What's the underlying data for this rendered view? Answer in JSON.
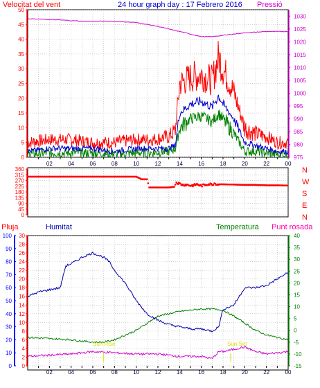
{
  "header": {
    "wind_label": "Velocitat del vent",
    "title": "24 hour graph day : 17 Febrero 2016",
    "pressure_label": "Pressió"
  },
  "mid_labels": {
    "pluja": "Pluja",
    "humitat": "Humitat",
    "temperatura": "Temperatura",
    "punt_rosada": "Punt rosada",
    "sun_rise": "Sun Rise",
    "sun_set": "Sun Set"
  },
  "compass": [
    "N",
    "W",
    "S",
    "E",
    "N"
  ],
  "colors": {
    "wind": "#ff0000",
    "avg": "#0000cc",
    "green": "#008000",
    "pressure": "#cc00cc",
    "humidity": "#0000aa",
    "rain_axis": "#0000ff",
    "grid": "#999999",
    "sun": "#dddd00"
  },
  "chart_data": [
    {
      "type": "line",
      "title": "24 hour graph day : 17 Febrero 2016",
      "x_ticks": [
        "02",
        "04",
        "06",
        "08",
        "10",
        "12",
        "14",
        "16",
        "18",
        "20",
        "22",
        "00"
      ],
      "y_left_ticks": [
        0,
        5,
        10,
        15,
        20,
        25,
        30,
        35,
        40,
        45,
        50
      ],
      "ylim_left": [
        0,
        50
      ],
      "y_right_ticks": [
        975,
        980,
        985,
        990,
        995,
        1000,
        1005,
        1010,
        1015,
        1020,
        1025,
        1030
      ],
      "ylim_right": [
        975,
        1032.5
      ],
      "series": [
        {
          "name": "Velocitat del vent",
          "axis": "left",
          "color": "#ff0000",
          "hours": [
            0,
            2,
            4,
            6,
            8,
            10,
            11.5,
            13,
            13.6,
            14,
            15,
            16,
            17,
            17.6,
            18,
            19,
            20,
            21,
            22,
            23,
            24
          ],
          "values": [
            5,
            6,
            6,
            5,
            5,
            6,
            6,
            7,
            9,
            25,
            27,
            28,
            26,
            34,
            30,
            22,
            10,
            8,
            7,
            5,
            5
          ]
        },
        {
          "name": "",
          "axis": "left",
          "color": "#0000cc",
          "hours": [
            0,
            2,
            4,
            6,
            8,
            10,
            11.5,
            13,
            13.6,
            14,
            15,
            16,
            17,
            17.6,
            18,
            19,
            20,
            21,
            22,
            23,
            24
          ],
          "values": [
            2,
            3,
            3,
            3,
            2,
            3,
            3,
            3,
            4,
            15,
            18,
            19,
            17,
            21,
            18,
            13,
            5,
            4,
            3,
            2,
            2
          ]
        },
        {
          "name": "",
          "axis": "left",
          "color": "#008000",
          "hours": [
            0,
            2,
            4,
            6,
            8,
            10,
            11.5,
            13,
            13.6,
            14,
            15,
            16,
            17,
            17.6,
            18,
            19,
            20,
            21,
            22,
            23,
            24
          ],
          "values": [
            1,
            1.5,
            1.5,
            1.5,
            1,
            1.5,
            1.5,
            2,
            3,
            10,
            13,
            14,
            12,
            15,
            13,
            8,
            2,
            2,
            1.5,
            1,
            1
          ]
        },
        {
          "name": "Pressió",
          "axis": "right",
          "color": "#cc00cc",
          "hours": [
            0,
            3,
            5,
            8,
            10,
            12,
            14,
            15,
            16,
            17,
            18,
            19,
            20,
            22,
            24
          ],
          "values": [
            1029,
            1028.5,
            1028,
            1028,
            1027.5,
            1026,
            1024,
            1023,
            1022,
            1022,
            1022.5,
            1023,
            1023.5,
            1024,
            1024
          ]
        }
      ]
    },
    {
      "type": "scatter",
      "ylabel": "",
      "y_ticks": [
        0,
        45,
        90,
        135,
        180,
        225,
        270,
        315,
        360
      ],
      "ylim": [
        0,
        360
      ],
      "points": [
        [
          0,
          300
        ],
        [
          1,
          300
        ],
        [
          2,
          300
        ],
        [
          3,
          300
        ],
        [
          4,
          300
        ],
        [
          5,
          300
        ],
        [
          6,
          300
        ],
        [
          7,
          300
        ],
        [
          8,
          300
        ],
        [
          9,
          300
        ],
        [
          10,
          300
        ],
        [
          10.5,
          280
        ],
        [
          11,
          280
        ],
        [
          11.2,
          215
        ],
        [
          12,
          215
        ],
        [
          12.5,
          215
        ],
        [
          13,
          215
        ],
        [
          13.5,
          220
        ],
        [
          13.7,
          255
        ],
        [
          14,
          245
        ],
        [
          14.3,
          235
        ],
        [
          14.6,
          238
        ],
        [
          15,
          230
        ],
        [
          15.3,
          232
        ],
        [
          15.6,
          240
        ],
        [
          16,
          228
        ],
        [
          16.3,
          235
        ],
        [
          16.6,
          242
        ],
        [
          17,
          240
        ],
        [
          17.2,
          248
        ],
        [
          17.5,
          240
        ],
        [
          18,
          240
        ],
        [
          19,
          238
        ],
        [
          20,
          235
        ],
        [
          21,
          235
        ],
        [
          22,
          232
        ],
        [
          23,
          232
        ],
        [
          24,
          230
        ]
      ]
    },
    {
      "type": "line",
      "x_ticks": [
        "02",
        "04",
        "06",
        "08",
        "10",
        "12",
        "14",
        "16",
        "18",
        "20",
        "22",
        "00"
      ],
      "rain_ticks": [
        0,
        10,
        20,
        30,
        40,
        50,
        60,
        70,
        80,
        90,
        100
      ],
      "ylim_rain": [
        0,
        100
      ],
      "humidity_ticks": [
        0,
        2,
        4,
        6,
        8,
        10,
        12,
        14,
        16,
        18,
        20,
        22,
        24,
        26,
        28,
        30
      ],
      "ylim_humidity": [
        0,
        30
      ],
      "temp_ticks": [
        -15,
        -10,
        -5,
        0,
        5,
        10,
        15,
        20,
        25,
        30,
        35,
        40
      ],
      "ylim_temp": [
        -15,
        40
      ],
      "series": [
        {
          "name": "Humitat",
          "axis": "humidity",
          "color": "#0000aa",
          "hours": [
            0,
            1,
            2,
            3,
            3.5,
            4,
            5,
            6,
            6.5,
            7,
            7.5,
            8,
            9,
            10,
            11,
            12,
            13,
            14,
            15,
            16,
            17,
            17.6,
            18,
            19,
            20,
            21,
            22,
            23,
            24
          ],
          "values": [
            16,
            17,
            17.5,
            18,
            23,
            23.5,
            25,
            26,
            25.5,
            25,
            24,
            22,
            19,
            15,
            12,
            10.5,
            9.5,
            9,
            8.5,
            8.5,
            8,
            9,
            13,
            14,
            18,
            18,
            18.5,
            20,
            21.5
          ]
        },
        {
          "name": "Temperatura",
          "axis": "temp",
          "color": "#008000",
          "hours": [
            0,
            2,
            4,
            6,
            7,
            8,
            9,
            10,
            11,
            12,
            13,
            14,
            15,
            16,
            17,
            18,
            19,
            20,
            21,
            22,
            23,
            24
          ],
          "values": [
            -3,
            -3.5,
            -4,
            -5,
            -5,
            -4,
            -2,
            0,
            3,
            6,
            7,
            8,
            8.5,
            9,
            9,
            8.5,
            6,
            3,
            0,
            -2,
            -3,
            -4
          ]
        },
        {
          "name": "Punt rosada",
          "axis": "temp",
          "color": "#cc00cc",
          "hours": [
            0,
            2,
            4,
            6,
            8,
            10,
            12,
            14,
            16,
            17,
            17.6,
            18,
            19,
            20,
            21,
            22,
            23,
            24
          ],
          "values": [
            -11,
            -10.5,
            -10,
            -9,
            -9.5,
            -10,
            -10,
            -11,
            -11,
            -12,
            -9,
            -9,
            -8,
            -7,
            -9,
            -10,
            -9.5,
            -9
          ]
        }
      ],
      "sun_rise_hour": 7,
      "sun_set_hour": 18.7
    }
  ]
}
